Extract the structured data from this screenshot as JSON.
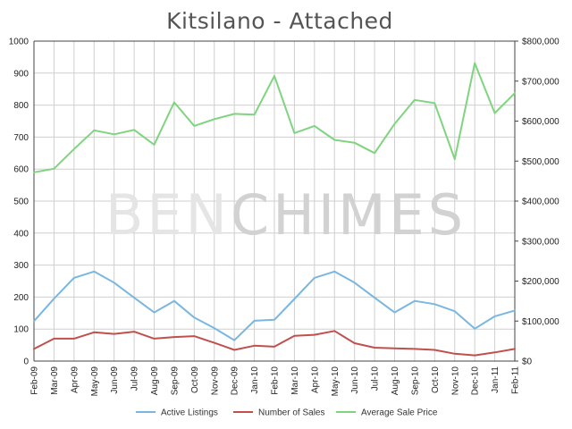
{
  "chart_data": {
    "type": "line",
    "title": "Kitsilano - Attached",
    "watermark": {
      "part1": "BEN",
      "part2": "CHIMES"
    },
    "categories": [
      "Feb-09",
      "Mar-09",
      "Apr-09",
      "May-09",
      "Jun-09",
      "Jul-09",
      "Aug-09",
      "Sep-09",
      "Oct-09",
      "Nov-09",
      "Dec-09",
      "Jan-10",
      "Feb-10",
      "Mar-10",
      "Apr-10",
      "May-10",
      "Jun-10",
      "Jul-10",
      "Aug-10",
      "Sep-10",
      "Oct-10",
      "Nov-10",
      "Dec-10",
      "Jan-11",
      "Feb-11"
    ],
    "y_left": {
      "min": 0,
      "max": 1000,
      "ticks": [
        0,
        100,
        200,
        300,
        400,
        500,
        600,
        700,
        800,
        900,
        1000
      ],
      "tick_labels": [
        "0",
        "100",
        "200",
        "300",
        "400",
        "500",
        "600",
        "700",
        "800",
        "900",
        "1000"
      ]
    },
    "y_right": {
      "min": 0,
      "max": 800000,
      "ticks": [
        0,
        100000,
        200000,
        300000,
        400000,
        500000,
        600000,
        700000,
        800000
      ],
      "tick_labels": [
        "$0",
        "$100,000",
        "$200,000",
        "$300,000",
        "$400,000",
        "$500,000",
        "$600,000",
        "$700,000",
        "$800,000"
      ]
    },
    "grid": true,
    "legend_position": "bottom",
    "series": [
      {
        "name": "Active Listings",
        "axis": "left",
        "color": "#7ab7e0",
        "values": [
          125,
          195,
          260,
          280,
          245,
          198,
          152,
          188,
          136,
          103,
          65,
          126,
          129,
          194,
          260,
          280,
          245,
          198,
          152,
          188,
          178,
          156,
          101,
          140,
          158
        ]
      },
      {
        "name": "Number of Sales",
        "axis": "left",
        "color": "#c0504d",
        "values": [
          38,
          70,
          70,
          90,
          85,
          92,
          70,
          75,
          78,
          57,
          35,
          48,
          45,
          79,
          82,
          94,
          56,
          42,
          40,
          38,
          35,
          23,
          18,
          27,
          38
        ]
      },
      {
        "name": "Average Sale Price",
        "axis": "right",
        "color": "#7fd47f",
        "values": [
          472000,
          481000,
          530000,
          577000,
          567000,
          578000,
          541000,
          647000,
          588000,
          605000,
          618000,
          616000,
          713000,
          570000,
          588000,
          553000,
          546000,
          520000,
          593000,
          653000,
          645000,
          505000,
          745000,
          620000,
          670000
        ]
      }
    ]
  }
}
